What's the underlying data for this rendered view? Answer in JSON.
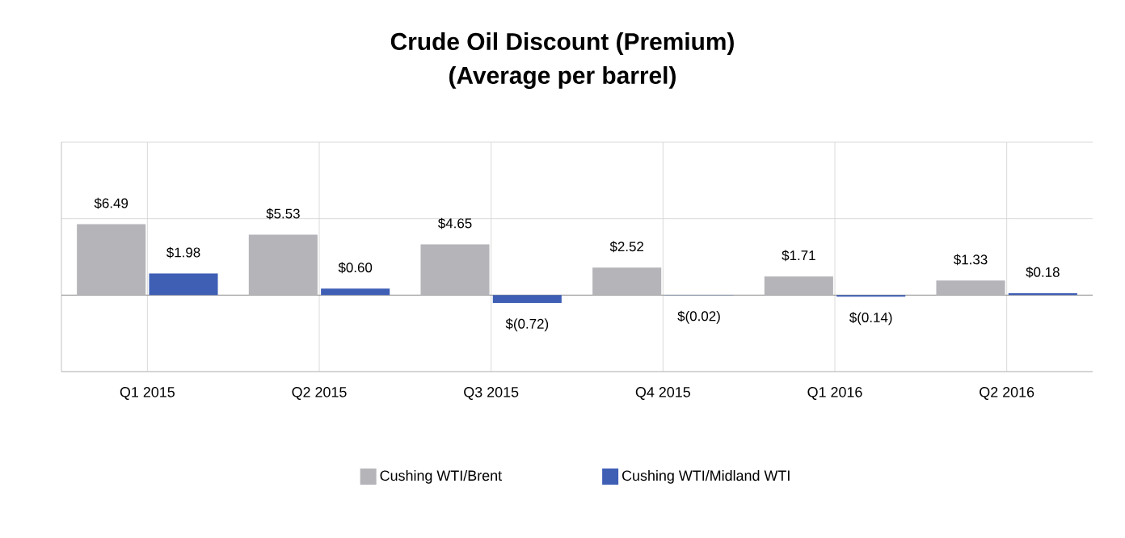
{
  "chart_data": {
    "type": "bar",
    "title": "Crude Oil Discount (Premium)",
    "subtitle": "(Average per barrel)",
    "categories": [
      "Q1 2015",
      "Q2 2015",
      "Q3 2015",
      "Q4 2015",
      "Q1 2016",
      "Q2 2016"
    ],
    "series": [
      {
        "name": "Cushing WTI/Brent",
        "color": "#b4b4b9",
        "values": [
          6.49,
          5.53,
          4.65,
          2.52,
          1.71,
          1.33
        ],
        "value_labels": [
          "$6.49",
          "$5.53",
          "$4.65",
          "$2.52",
          "$1.71",
          "$1.33"
        ]
      },
      {
        "name": "Cushing WTI/Midland WTI",
        "color": "#3f5fb5",
        "values": [
          1.98,
          0.6,
          -0.72,
          -0.02,
          -0.14,
          0.18
        ],
        "value_labels": [
          "$1.98",
          "$0.60",
          "$(0.72)",
          "$(0.02)",
          "$(0.14)",
          "$0.18"
        ]
      }
    ],
    "ylim": [
      -7,
      14
    ],
    "yticks": [
      {
        "value": -7,
        "label": null
      },
      {
        "value": 0,
        "label": null
      },
      {
        "value": 7,
        "label": null
      },
      {
        "value": 14,
        "label": null
      }
    ],
    "grid": true,
    "legend": "bottom",
    "tick_labels": "x"
  }
}
